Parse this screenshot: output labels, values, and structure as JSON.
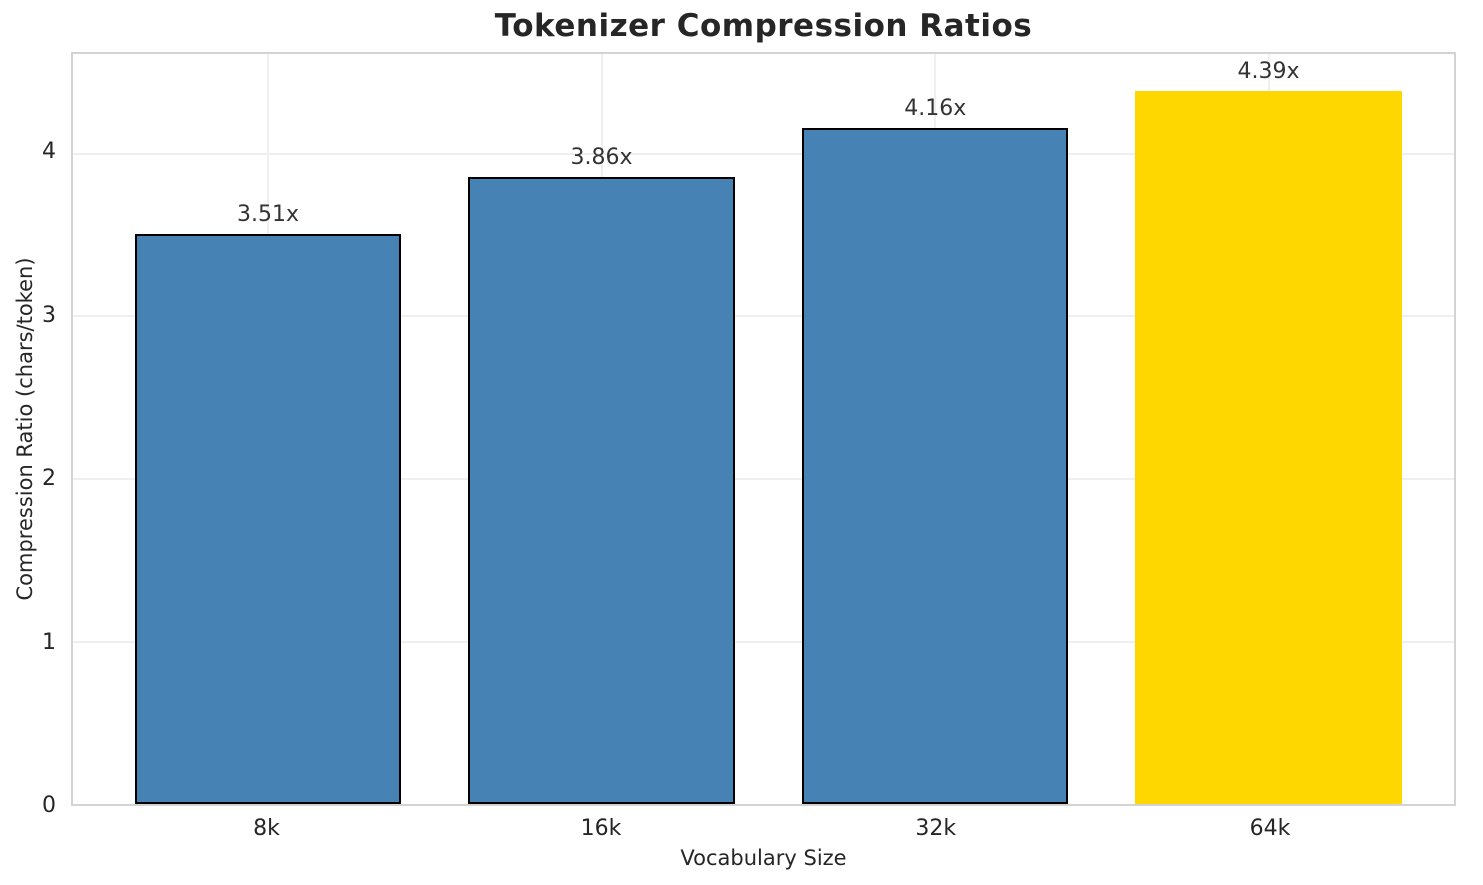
{
  "chart_data": {
    "type": "bar",
    "title": "Tokenizer Compression Ratios",
    "xlabel": "Vocabulary Size",
    "ylabel": "Compression Ratio (chars/token)",
    "categories": [
      "8k",
      "16k",
      "32k",
      "64k"
    ],
    "values": [
      3.51,
      3.86,
      4.16,
      4.39
    ],
    "value_labels": [
      "3.51x",
      "3.86x",
      "4.16x",
      "4.39x"
    ],
    "yticks": [
      "0",
      "1",
      "2",
      "3",
      "4"
    ],
    "ytick_values": [
      0,
      1,
      2,
      3,
      4
    ],
    "ylim": [
      0,
      4.615
    ],
    "grid": true,
    "legend": "none",
    "colors": {
      "bar": "#4682B4",
      "highlight_bar": "#FFD700",
      "bar_edge": "#000000",
      "highlight_bar_edge": "none",
      "bar_colors": [
        "#4682B4",
        "#4682B4",
        "#4682B4",
        "#FFD700"
      ],
      "bar_edge_colors": [
        "#000000",
        "#000000",
        "#000000",
        "none"
      ],
      "spine": "#D3D3D3",
      "grid": "#EFEFEF",
      "title_text": "#262626",
      "tick_text": "#262626",
      "value_label_text": "#333333",
      "background": "#FFFFFF"
    }
  }
}
